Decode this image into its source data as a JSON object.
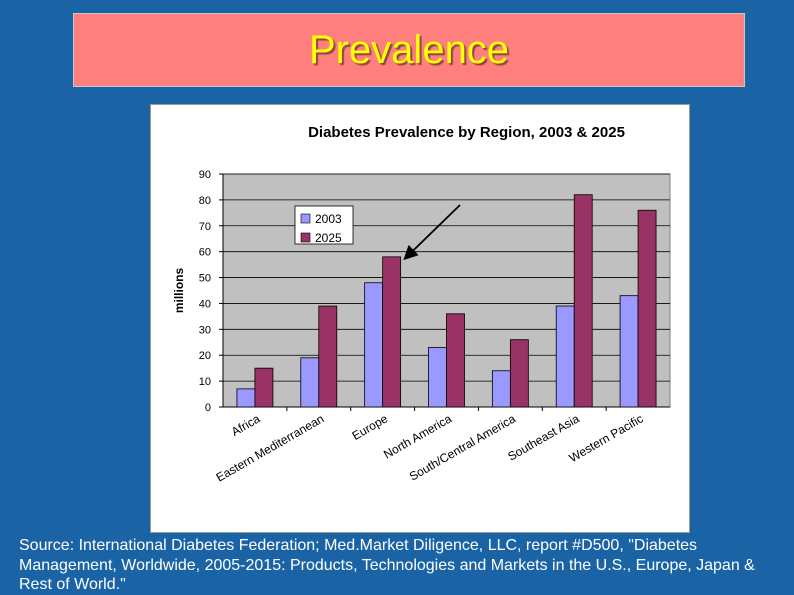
{
  "slide": {
    "title": "Prevalence",
    "source": "Source: International Diabetes Federation; Med.Market Diligence, LLC, report #D500, \"Diabetes Management, Worldwide, 2005-2015: Products, Technologies and Markets in the U.S., Europe, Japan & Rest of World.\""
  },
  "colors": {
    "background": "#1a64a6",
    "title_box": "#ff7f7f",
    "title_text": "#ffff00",
    "plot_area": "#c0c0c0",
    "series_2003": "#9999ff",
    "series_2025": "#993366"
  },
  "chart_data": {
    "type": "bar",
    "title": "Diabetes Prevalence by Region, 2003 & 2025",
    "xlabel": "",
    "ylabel": "millions",
    "ylim": [
      0,
      90
    ],
    "yticks": [
      0,
      10,
      20,
      30,
      40,
      50,
      60,
      70,
      80,
      90
    ],
    "grid": true,
    "legend": "top-left",
    "categories": [
      "Africa",
      "Eastern Mediterranean",
      "Europe",
      "North America",
      "South/Central America",
      "Southeast Asia",
      "Western Pacific"
    ],
    "series": [
      {
        "name": "2003",
        "values": [
          7,
          19,
          48,
          23,
          14,
          39,
          43
        ]
      },
      {
        "name": "2025",
        "values": [
          15,
          39,
          58,
          36,
          26,
          82,
          76
        ]
      }
    ],
    "annotations": [
      {
        "type": "arrow",
        "points_to": "Europe 2025"
      }
    ]
  }
}
